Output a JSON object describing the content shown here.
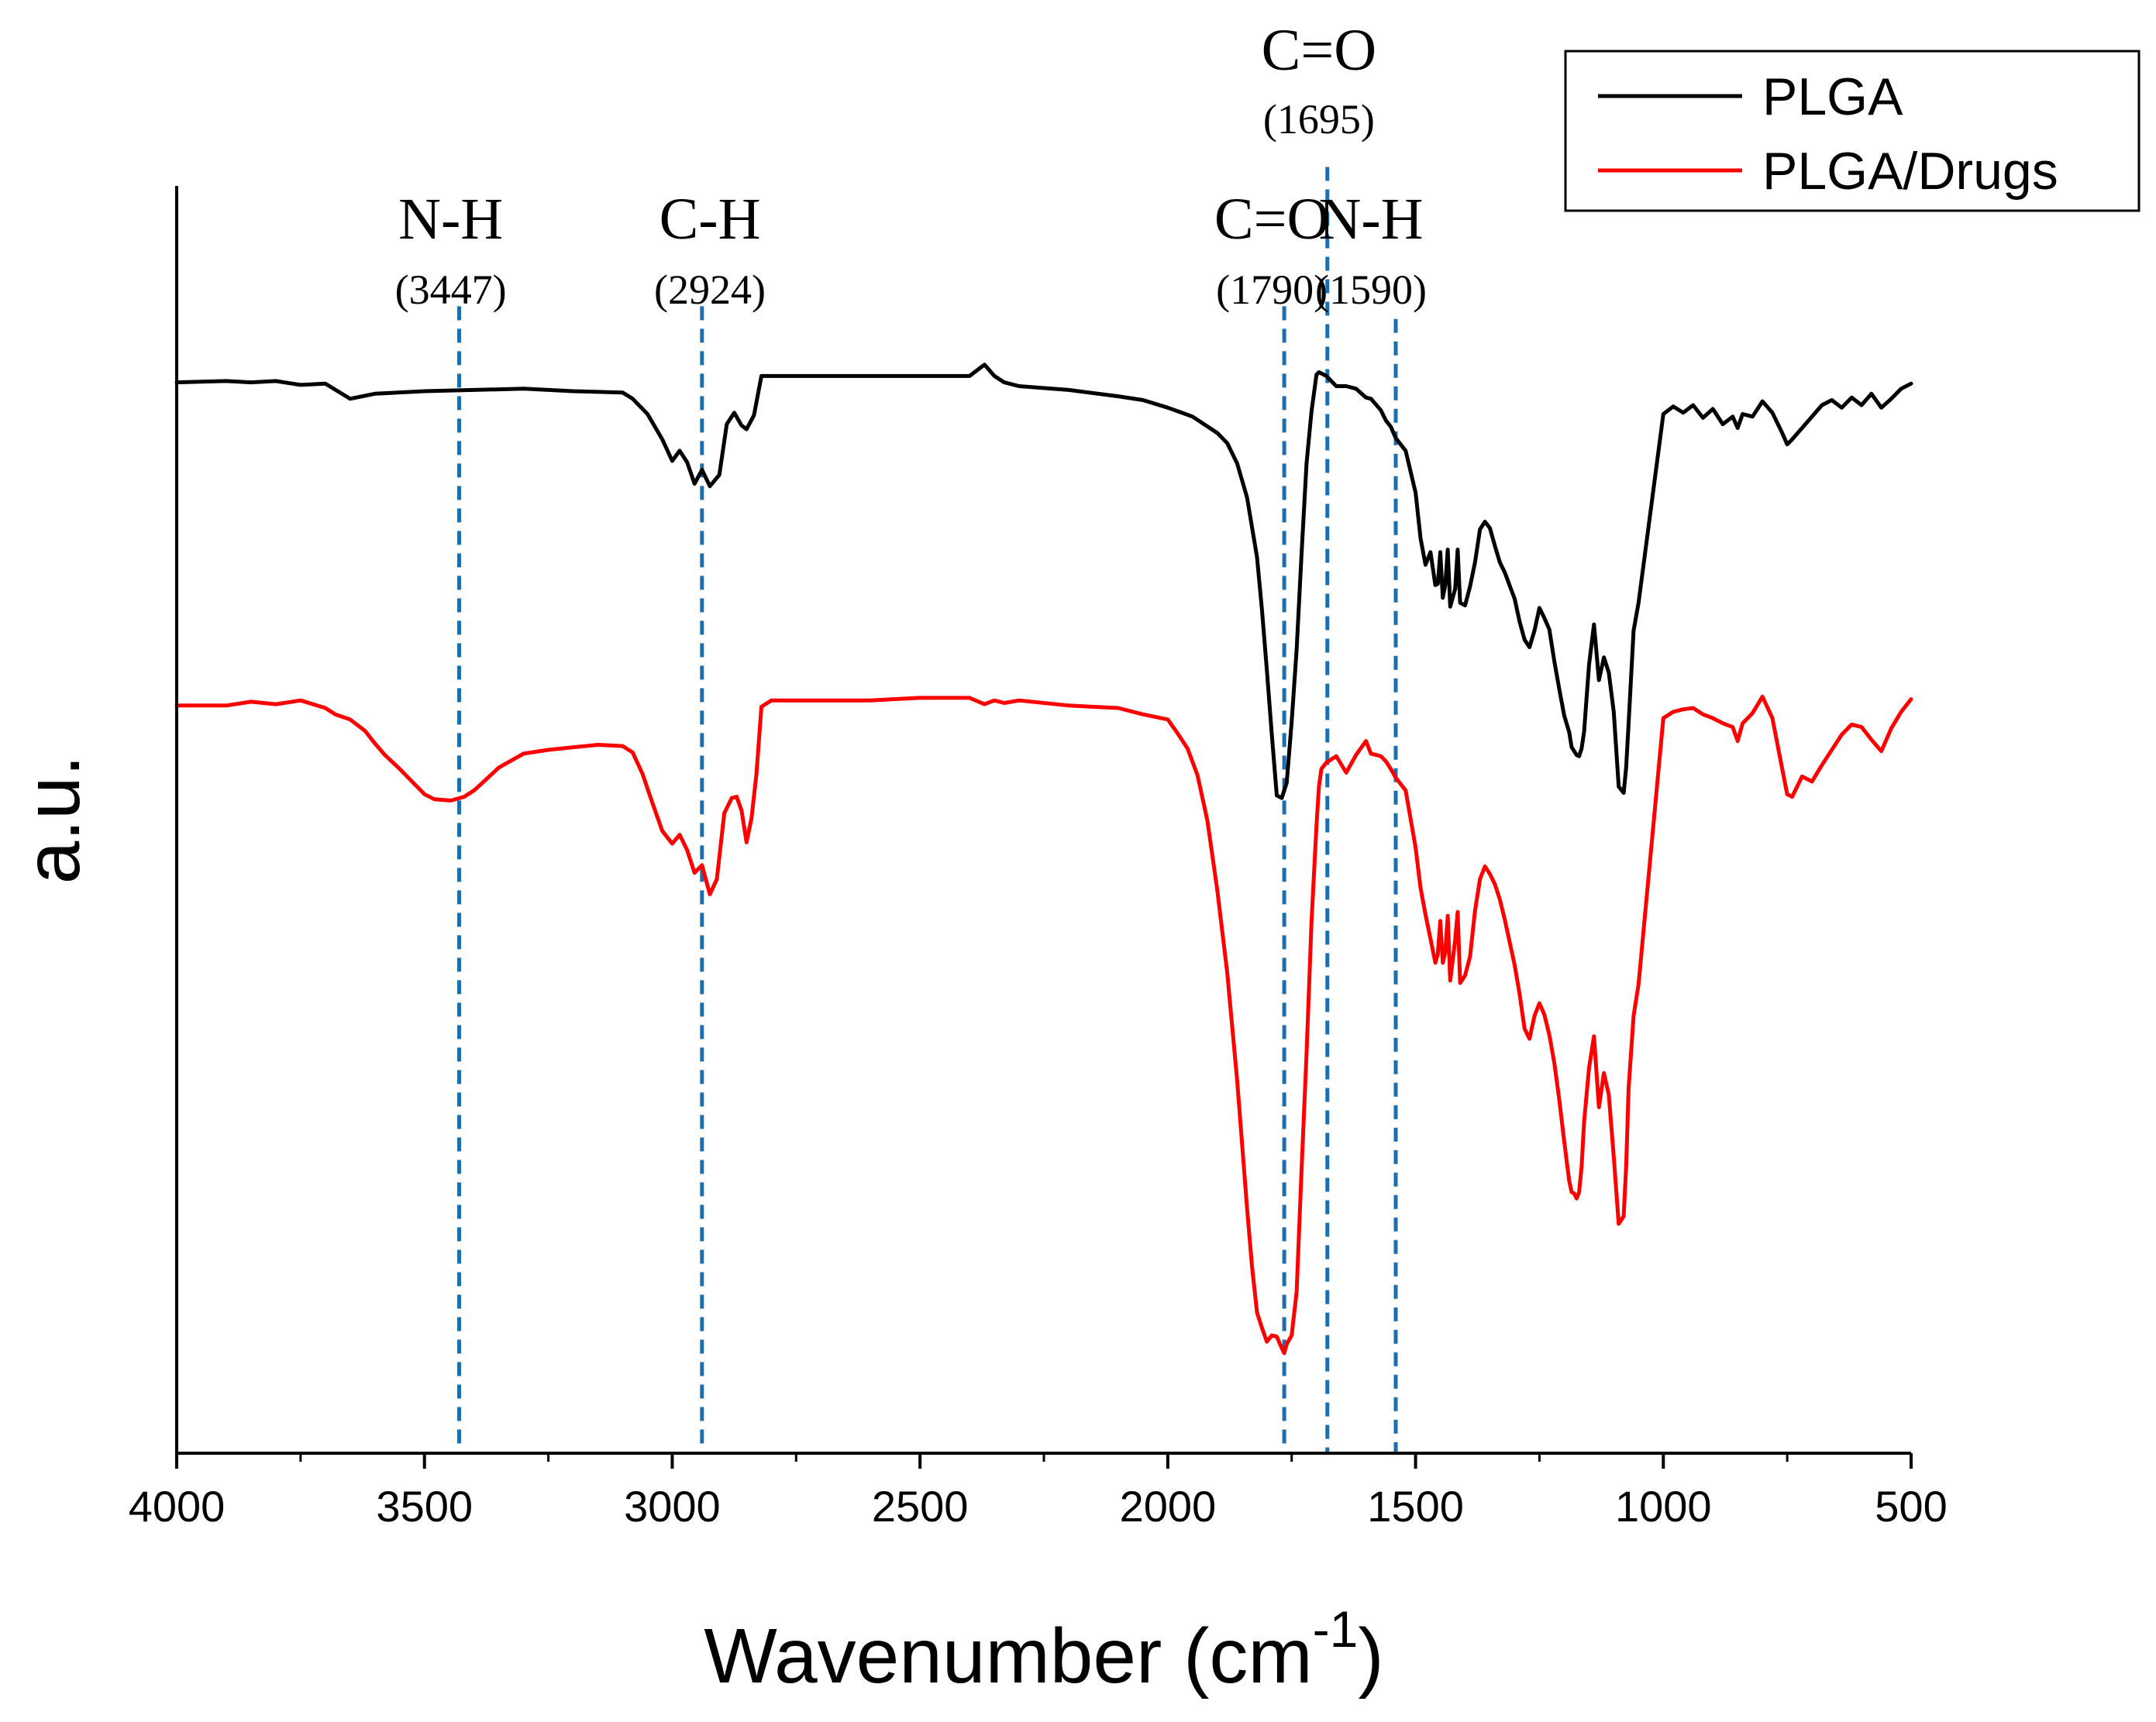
{
  "chart_data": {
    "type": "line",
    "title": "",
    "xlabel": "Wavenumber (cm",
    "xlabel_sup": "-1",
    "xlabel_close": ")",
    "ylabel": "a.u.",
    "xlim": [
      4000,
      500
    ],
    "ylim": [
      0,
      100
    ],
    "xticks": [
      {
        "value": 4000,
        "label": "4000"
      },
      {
        "value": 3500,
        "label": "3500"
      },
      {
        "value": 3000,
        "label": "3000"
      },
      {
        "value": 2500,
        "label": "2500"
      },
      {
        "value": 2000,
        "label": "2000"
      },
      {
        "value": 1500,
        "label": "1500"
      },
      {
        "value": 1000,
        "label": "1000"
      },
      {
        "value": 500,
        "label": "500"
      }
    ],
    "legend_position": "top-right",
    "series": [
      {
        "name": "PLGA",
        "color": "#000000",
        "x": [
          4000,
          3900,
          3850,
          3800,
          3750,
          3700,
          3650,
          3600,
          3500,
          3400,
          3300,
          3200,
          3100,
          3080,
          3050,
          3020,
          3000,
          2985,
          2970,
          2955,
          2940,
          2924,
          2905,
          2890,
          2875,
          2860,
          2850,
          2835,
          2820,
          2800,
          2700,
          2600,
          2500,
          2400,
          2370,
          2350,
          2330,
          2300,
          2200,
          2100,
          2050,
          2000,
          1950,
          1900,
          1880,
          1860,
          1840,
          1820,
          1810,
          1800,
          1790,
          1780,
          1770,
          1760,
          1750,
          1740,
          1730,
          1720,
          1710,
          1700,
          1695,
          1680,
          1660,
          1640,
          1620,
          1600,
          1590,
          1570,
          1560,
          1550,
          1540,
          1520,
          1500,
          1490,
          1480,
          1470,
          1460,
          1455,
          1450,
          1445,
          1440,
          1435,
          1430,
          1420,
          1415,
          1410,
          1400,
          1390,
          1380,
          1370,
          1360,
          1350,
          1340,
          1330,
          1320,
          1300,
          1290,
          1280,
          1270,
          1260,
          1250,
          1240,
          1230,
          1220,
          1210,
          1200,
          1190,
          1185,
          1180,
          1175,
          1170,
          1165,
          1160,
          1150,
          1140,
          1130,
          1120,
          1110,
          1100,
          1090,
          1080,
          1075,
          1070,
          1060,
          1050,
          1000,
          980,
          960,
          940,
          920,
          900,
          880,
          860,
          850,
          840,
          820,
          800,
          780,
          760,
          750,
          740,
          720,
          700,
          680,
          660,
          640,
          620,
          600,
          580,
          560,
          540,
          520,
          500
        ],
        "y": [
          84.5,
          84.6,
          84.5,
          84.6,
          84.3,
          84.4,
          83.2,
          83.6,
          83.8,
          83.9,
          84.0,
          83.8,
          83.7,
          83.2,
          82.0,
          80.0,
          78.3,
          79.1,
          78.2,
          76.5,
          77.6,
          76.3,
          77.2,
          81.2,
          82.1,
          81.1,
          80.8,
          81.9,
          85.0,
          85.0,
          85.0,
          85.0,
          85.0,
          85.0,
          85.9,
          85.0,
          84.5,
          84.2,
          83.9,
          83.4,
          83.1,
          82.5,
          81.8,
          80.5,
          79.7,
          78.1,
          75.4,
          70.7,
          66.6,
          61.8,
          56.7,
          51.9,
          51.7,
          52.9,
          57.7,
          63.4,
          71.0,
          78.1,
          82.2,
          85.1,
          85.3,
          85.0,
          84.2,
          84.2,
          84.0,
          83.3,
          83.2,
          82.3,
          81.5,
          81.0,
          80.1,
          79.1,
          75.8,
          72.2,
          70.1,
          71.1,
          68.5,
          68.6,
          71.1,
          67.5,
          68.5,
          71.3,
          66.8,
          68.2,
          71.3,
          67.1,
          66.9,
          68.4,
          70.3,
          72.9,
          73.5,
          73.0,
          71.6,
          70.3,
          69.5,
          67.4,
          65.6,
          64.2,
          63.6,
          64.9,
          66.7,
          65.9,
          65.0,
          62.5,
          60.3,
          58.2,
          56.9,
          55.7,
          55.4,
          55.1,
          55.0,
          55.6,
          56.9,
          62.2,
          65.4,
          61.0,
          62.8,
          61.6,
          58.5,
          52.6,
          52.1,
          54.1,
          57.6,
          64.9,
          67.1,
          82.0,
          82.6,
          82.1,
          82.7,
          81.7,
          82.4,
          81.2,
          81.8,
          80.9,
          82.0,
          81.8,
          83.0,
          82.1,
          80.5,
          79.6,
          80.0,
          80.9,
          81.8,
          82.7,
          83.1,
          82.5,
          83.3,
          82.7,
          83.6,
          82.5,
          83.2,
          84.0,
          84.4
        ]
      },
      {
        "name": "PLGA/Drugs",
        "color": "#ff0000",
        "x": [
          4000,
          3900,
          3850,
          3800,
          3750,
          3700,
          3680,
          3650,
          3620,
          3600,
          3580,
          3550,
          3520,
          3500,
          3480,
          3447,
          3420,
          3400,
          3380,
          3350,
          3300,
          3250,
          3200,
          3150,
          3100,
          3080,
          3060,
          3040,
          3020,
          3000,
          2985,
          2970,
          2955,
          2940,
          2924,
          2910,
          2895,
          2880,
          2870,
          2860,
          2850,
          2840,
          2830,
          2820,
          2800,
          2700,
          2600,
          2500,
          2400,
          2370,
          2350,
          2330,
          2300,
          2200,
          2100,
          2050,
          2000,
          1980,
          1960,
          1940,
          1920,
          1900,
          1880,
          1860,
          1840,
          1830,
          1820,
          1810,
          1800,
          1790,
          1780,
          1770,
          1765,
          1760,
          1750,
          1740,
          1730,
          1720,
          1710,
          1700,
          1695,
          1690,
          1680,
          1660,
          1640,
          1620,
          1600,
          1590,
          1570,
          1560,
          1550,
          1540,
          1520,
          1500,
          1490,
          1480,
          1470,
          1460,
          1455,
          1450,
          1445,
          1440,
          1435,
          1430,
          1420,
          1415,
          1410,
          1400,
          1390,
          1380,
          1370,
          1360,
          1350,
          1340,
          1330,
          1320,
          1300,
          1290,
          1280,
          1270,
          1260,
          1250,
          1240,
          1230,
          1220,
          1210,
          1200,
          1190,
          1185,
          1180,
          1175,
          1170,
          1165,
          1160,
          1150,
          1140,
          1130,
          1120,
          1110,
          1100,
          1090,
          1080,
          1075,
          1070,
          1060,
          1050,
          1000,
          980,
          960,
          940,
          920,
          900,
          880,
          860,
          850,
          840,
          820,
          800,
          780,
          760,
          750,
          740,
          720,
          700,
          680,
          660,
          640,
          620,
          600,
          580,
          560,
          540,
          520,
          500
        ],
        "y": [
          59.0,
          59.0,
          59.3,
          59.1,
          59.4,
          58.8,
          58.3,
          57.9,
          57.0,
          56.0,
          55.1,
          54.0,
          52.8,
          52.0,
          51.6,
          51.5,
          51.8,
          52.3,
          53.0,
          54.1,
          55.2,
          55.5,
          55.7,
          55.9,
          55.8,
          55.3,
          53.6,
          51.3,
          49.1,
          48.1,
          48.8,
          47.6,
          45.8,
          46.4,
          44.1,
          45.3,
          50.5,
          51.7,
          51.8,
          50.7,
          48.2,
          50.1,
          53.6,
          58.9,
          59.4,
          59.4,
          59.4,
          59.6,
          59.6,
          59.1,
          59.4,
          59.2,
          59.4,
          59.0,
          58.8,
          58.3,
          57.9,
          56.8,
          55.6,
          53.5,
          49.9,
          44.4,
          37.9,
          29.4,
          19.3,
          14.7,
          11.1,
          9.9,
          8.8,
          9.3,
          9.2,
          8.3,
          7.9,
          8.6,
          9.3,
          12.7,
          22.4,
          31.5,
          41.9,
          49.5,
          52.6,
          54.0,
          54.5,
          55.0,
          53.7,
          55.1,
          56.2,
          55.2,
          55.0,
          54.6,
          54.0,
          53.3,
          52.3,
          47.8,
          44.6,
          42.5,
          40.6,
          38.7,
          39.4,
          42.0,
          38.7,
          39.5,
          42.4,
          37.3,
          40.5,
          42.7,
          37.1,
          37.7,
          39.2,
          42.8,
          45.3,
          46.3,
          45.7,
          44.9,
          43.7,
          42.1,
          38.5,
          36.2,
          33.5,
          32.7,
          34.5,
          35.5,
          34.6,
          33.0,
          30.8,
          27.9,
          24.6,
          21.5,
          20.6,
          20.5,
          20.1,
          20.6,
          22.6,
          26.1,
          30.4,
          32.9,
          27.3,
          30.0,
          28.3,
          23.4,
          18.1,
          18.7,
          22.6,
          28.8,
          34.5,
          37.0,
          58.0,
          58.5,
          58.7,
          58.8,
          58.3,
          58.0,
          57.6,
          57.3,
          56.2,
          57.6,
          58.4,
          59.7,
          58.0,
          54.0,
          52.0,
          51.8,
          53.4,
          53.0,
          54.3,
          55.5,
          56.7,
          57.5,
          57.3,
          56.3,
          55.4,
          57.2,
          58.5,
          59.5
        ]
      }
    ],
    "annotations": [
      {
        "wavenumber": 3447,
        "label": "N-H",
        "value_text": "(3447)",
        "line_x": 3430,
        "level": "lower",
        "line_top": 90.5
      },
      {
        "wavenumber": 2924,
        "label": "C-H",
        "value_text": "(2924)",
        "line_x": 2940,
        "level": "lower",
        "line_top": 90.5
      },
      {
        "wavenumber": 1790,
        "label": "C=O",
        "value_text": "(1790)",
        "line_x": 1765,
        "level": "lower",
        "line_top": 90.5
      },
      {
        "wavenumber": 1695,
        "label": "C=O",
        "value_text": "(1695)",
        "line_x": 1678,
        "level": "upper",
        "line_top": 101.5
      },
      {
        "wavenumber": 1590,
        "label": "N-H",
        "value_text": "(1590)",
        "line_x": 1540,
        "level": "lower",
        "line_top": 89.5
      }
    ]
  }
}
